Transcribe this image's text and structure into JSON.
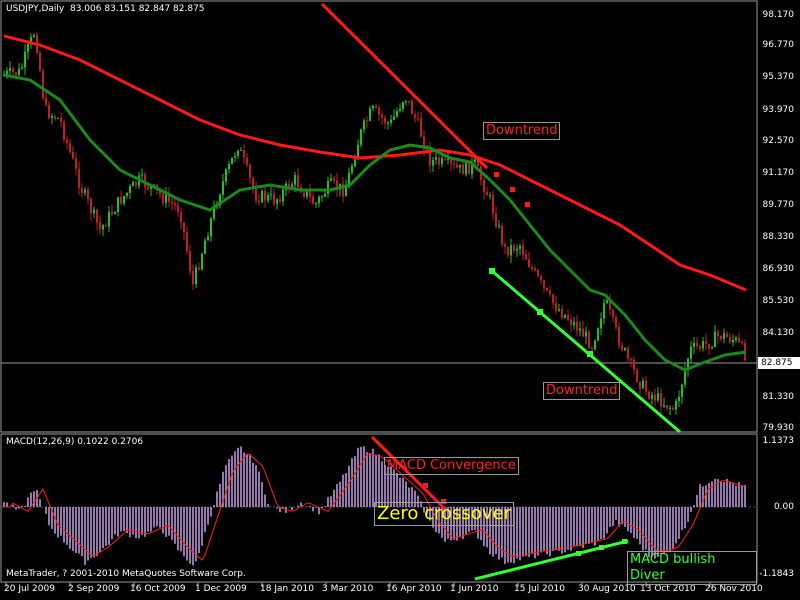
{
  "window": {
    "title": "USDJPY,Daily",
    "ohlc": "83.006 83.151 82.847 82.875",
    "copyright": "MetaTrader, ? 2001-2010 MetaQuotes Software Corp."
  },
  "price_axis": {
    "labels": [
      "98.170",
      "96.770",
      "95.370",
      "93.970",
      "92.570",
      "91.170",
      "89.770",
      "88.330",
      "86.930",
      "85.530",
      "84.130",
      "82.875",
      "81.330",
      "79.930"
    ],
    "current": "82.875"
  },
  "macd": {
    "title": "MACD(12,26,9) 0.1022 0.2706",
    "axis": {
      "top": "1.1373",
      "zero": "0.00",
      "bottom": "-1.1843"
    }
  },
  "x_axis": {
    "labels": [
      "20 Jul 2009",
      "2 Sep 2009",
      "16 Oct 2009",
      "1 Dec 2009",
      "18 Jan 2010",
      "3 Mar 2010",
      "16 Apr 2010",
      "1 Jun 2010",
      "15 Jul 2010",
      "30 Aug 2010",
      "13 Oct 2010",
      "26 Nov 2010"
    ]
  },
  "annotations": {
    "downtrend_upper": "Downtrend",
    "downtrend_lower": "Downtrend",
    "macd_convergence": "MACD Convergence",
    "zero_crossover": "Zero crossover",
    "macd_bullish": "MACD bullish Diver"
  },
  "colors": {
    "bull": "#22c022",
    "bear": "#c02020",
    "ma_fast": "#1a8a1a",
    "ma_slow": "#ff1a1a",
    "trend_red": "#ff1a1a",
    "trend_green": "#33ff33",
    "hist": "#c8a0e8",
    "signal": "#ff1a1a"
  },
  "chart_data": {
    "type": "line",
    "series": [
      {
        "name": "USDJPY",
        "x": [
          "20 Jul 2009",
          "2 Sep 2009",
          "16 Oct 2009",
          "1 Dec 2009",
          "18 Jan 2010",
          "3 Mar 2010",
          "16 Apr 2010",
          "1 Jun 2010",
          "15 Jul 2010",
          "30 Aug 2010",
          "13 Oct 2010",
          "26 Nov 2010"
        ],
        "values": [
          94.9,
          92.4,
          90.2,
          86.4,
          91.2,
          89.1,
          93.4,
          91.3,
          87.1,
          84.2,
          81.4,
          83.9
        ]
      }
    ],
    "ylim": [
      79.93,
      98.17
    ]
  }
}
